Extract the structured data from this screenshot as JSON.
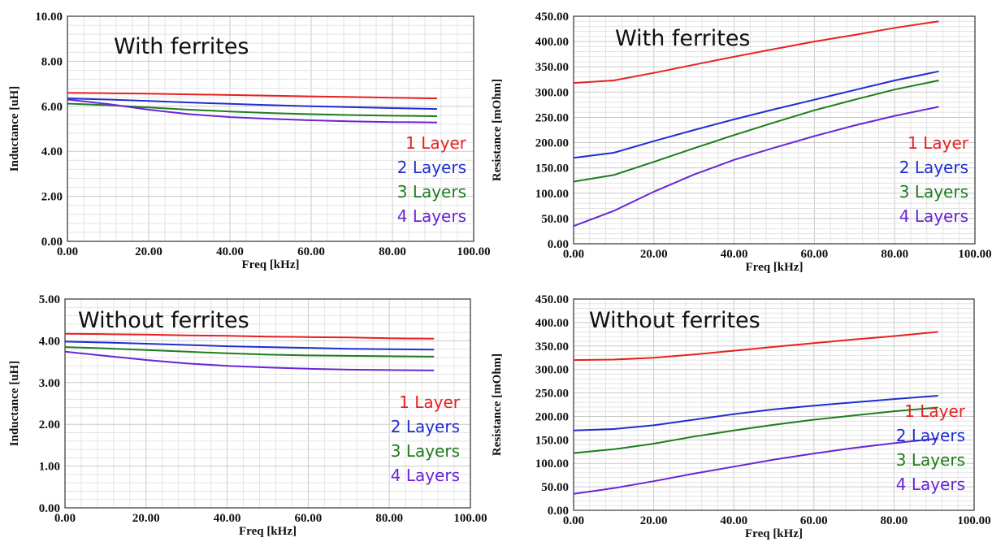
{
  "colors": {
    "1 Layer": "#e82020",
    "2 Layers": "#1f2fd0",
    "3 Layers": "#1e7d1e",
    "4 Layers": "#6a25d6"
  },
  "chart_data": [
    {
      "type": "line",
      "title": "With ferrites",
      "xlabel": "Freq [kHz]",
      "ylabel": "Inductance [uH]",
      "xlim": [
        0,
        100
      ],
      "ylim": [
        0,
        10
      ],
      "xticks": [
        "0.00",
        "20.00",
        "40.00",
        "60.00",
        "80.00",
        "100.00"
      ],
      "yticks": [
        "0.00",
        "2.00",
        "4.00",
        "6.00",
        "8.00",
        "10.00"
      ],
      "grid": true,
      "legend_position": "right",
      "x": [
        0,
        10,
        20,
        30,
        40,
        50,
        60,
        70,
        80,
        91
      ],
      "series": [
        {
          "name": "1 Layer",
          "values": [
            6.6,
            6.58,
            6.56,
            6.53,
            6.5,
            6.47,
            6.44,
            6.41,
            6.38,
            6.35
          ]
        },
        {
          "name": "2 Layers",
          "values": [
            6.35,
            6.3,
            6.24,
            6.17,
            6.11,
            6.05,
            6.0,
            5.96,
            5.92,
            5.88
          ]
        },
        {
          "name": "3 Layers",
          "values": [
            6.12,
            6.05,
            5.95,
            5.85,
            5.77,
            5.7,
            5.65,
            5.61,
            5.58,
            5.56
          ]
        },
        {
          "name": "4 Layers",
          "values": [
            6.3,
            6.1,
            5.85,
            5.65,
            5.52,
            5.44,
            5.38,
            5.33,
            5.3,
            5.28
          ]
        }
      ]
    },
    {
      "type": "line",
      "title": "With ferrites",
      "xlabel": "Freq [kHz]",
      "ylabel": "Resistance [mOhm]",
      "xlim": [
        0,
        100
      ],
      "ylim": [
        0,
        450
      ],
      "xticks": [
        "0.00",
        "20.00",
        "40.00",
        "60.00",
        "80.00",
        "100.00"
      ],
      "yticks": [
        "0.00",
        "50.00",
        "100.00",
        "150.00",
        "200.00",
        "250.00",
        "300.00",
        "350.00",
        "400.00",
        "450.00"
      ],
      "grid": true,
      "legend_position": "right",
      "x": [
        0,
        10,
        20,
        30,
        40,
        50,
        60,
        70,
        80,
        91
      ],
      "series": [
        {
          "name": "1 Layer",
          "values": [
            318,
            323,
            338,
            354,
            370,
            385,
            400,
            413,
            427,
            440
          ]
        },
        {
          "name": "2 Layers",
          "values": [
            170,
            180,
            203,
            225,
            246,
            266,
            285,
            304,
            323,
            341
          ]
        },
        {
          "name": "3 Layers",
          "values": [
            123,
            136,
            162,
            189,
            215,
            240,
            264,
            285,
            305,
            323
          ]
        },
        {
          "name": "4 Layers",
          "values": [
            35,
            65,
            103,
            137,
            166,
            190,
            213,
            234,
            253,
            271
          ]
        }
      ]
    },
    {
      "type": "line",
      "title": "Without ferrites",
      "xlabel": "Freq [kHz]",
      "ylabel": "Inductance [uH]",
      "xlim": [
        0,
        100
      ],
      "ylim": [
        0,
        5
      ],
      "xticks": [
        "0.00",
        "20.00",
        "40.00",
        "60.00",
        "80.00",
        "100.00"
      ],
      "yticks": [
        "0.00",
        "1.00",
        "2.00",
        "3.00",
        "4.00",
        "5.00"
      ],
      "grid": true,
      "legend_position": "right",
      "x": [
        0,
        10,
        20,
        30,
        40,
        50,
        60,
        70,
        80,
        91
      ],
      "series": [
        {
          "name": "1 Layer",
          "values": [
            4.17,
            4.16,
            4.15,
            4.13,
            4.12,
            4.1,
            4.09,
            4.08,
            4.06,
            4.05
          ]
        },
        {
          "name": "2 Layers",
          "values": [
            3.98,
            3.96,
            3.93,
            3.9,
            3.87,
            3.85,
            3.83,
            3.81,
            3.8,
            3.79
          ]
        },
        {
          "name": "3 Layers",
          "values": [
            3.85,
            3.82,
            3.78,
            3.74,
            3.7,
            3.67,
            3.65,
            3.64,
            3.63,
            3.62
          ]
        },
        {
          "name": "4 Layers",
          "values": [
            3.74,
            3.64,
            3.54,
            3.46,
            3.4,
            3.36,
            3.33,
            3.31,
            3.3,
            3.29
          ]
        }
      ]
    },
    {
      "type": "line",
      "title": "Without ferrites",
      "xlabel": "Freq [kHz]",
      "ylabel": "Resistance [mOhm]",
      "xlim": [
        0,
        100
      ],
      "ylim": [
        0,
        450
      ],
      "xticks": [
        "0.00",
        "20.00",
        "40.00",
        "60.00",
        "80.00",
        "100.00"
      ],
      "yticks": [
        "0.00",
        "50.00",
        "100.00",
        "150.00",
        "200.00",
        "250.00",
        "300.00",
        "350.00",
        "400.00",
        "450.00"
      ],
      "grid": true,
      "legend_position": "right",
      "x": [
        0,
        10,
        20,
        30,
        40,
        50,
        60,
        70,
        80,
        91
      ],
      "series": [
        {
          "name": "1 Layer",
          "values": [
            320,
            321,
            325,
            332,
            340,
            348,
            356,
            364,
            371,
            380
          ]
        },
        {
          "name": "2 Layers",
          "values": [
            170,
            173,
            181,
            193,
            205,
            215,
            223,
            230,
            237,
            244
          ]
        },
        {
          "name": "3 Layers",
          "values": [
            122,
            130,
            142,
            157,
            170,
            182,
            193,
            202,
            211,
            219
          ]
        },
        {
          "name": "4 Layers",
          "values": [
            35,
            47,
            62,
            78,
            93,
            108,
            121,
            133,
            143,
            153
          ]
        }
      ]
    }
  ]
}
